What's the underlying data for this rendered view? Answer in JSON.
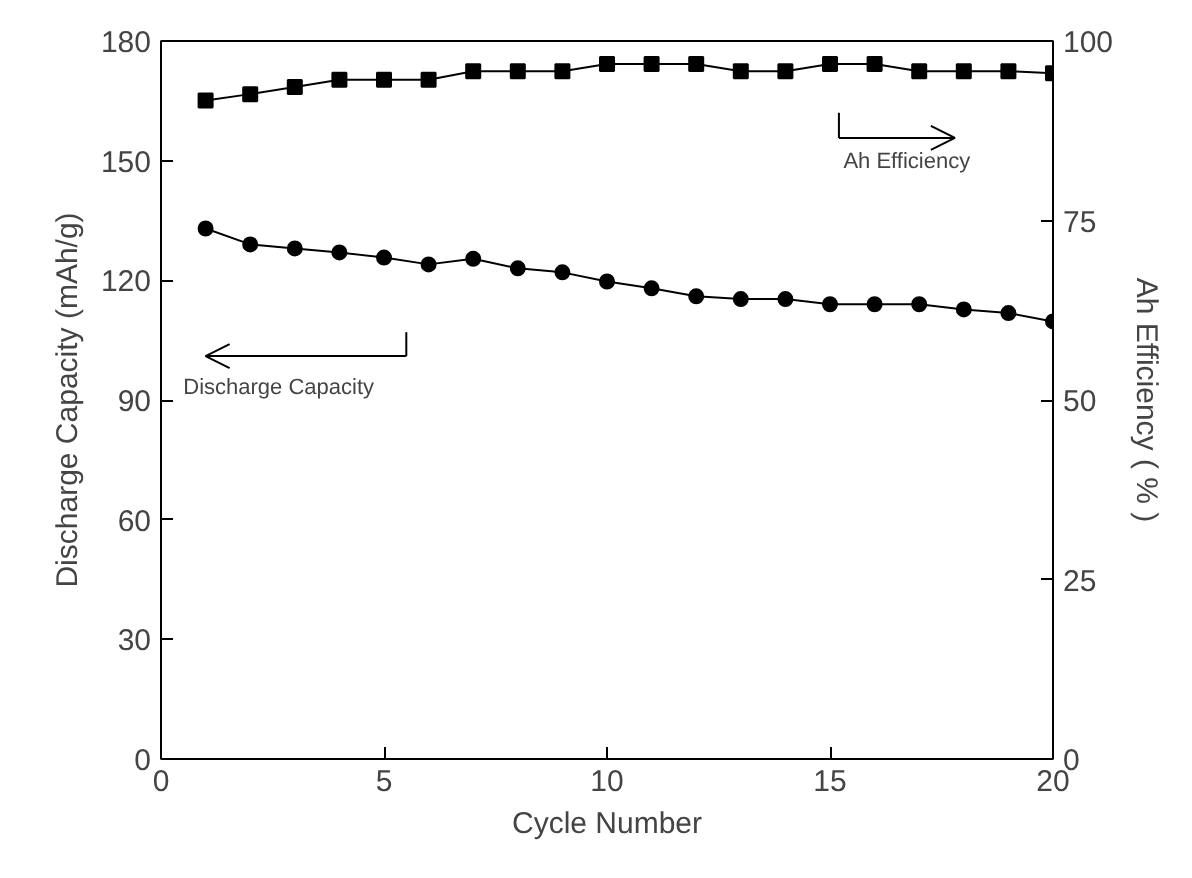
{
  "chart_data": {
    "type": "line",
    "xlabel": "Cycle Number",
    "ylabel": "Discharge Capacity (mAh/g)",
    "y2label": "Ah Efficiency ( % )",
    "x": [
      1,
      2,
      3,
      4,
      5,
      6,
      7,
      8,
      9,
      10,
      11,
      12,
      13,
      14,
      15,
      16,
      17,
      18,
      19,
      20
    ],
    "series": [
      {
        "color": "#000000",
        "marker": "circle",
        "values": [
          133,
          129,
          128,
          127,
          125.7,
          124,
          125.4,
          123,
          122,
          119.7,
          118,
          116,
          115.3,
          115.3,
          114,
          114,
          114,
          112.7,
          111.8,
          109.7
        ]
      },
      {
        "color": "#000000",
        "marker": "square",
        "axis": "y2",
        "values": [
          91.7,
          92.6,
          93.6,
          94.6,
          94.6,
          94.6,
          95.8,
          95.8,
          95.8,
          96.8,
          96.8,
          96.8,
          95.8,
          95.8,
          96.8,
          96.8,
          95.8,
          95.8,
          95.8,
          95.5
        ]
      }
    ],
    "xlim": [
      0,
      20
    ],
    "xticks": [
      0,
      5,
      10,
      15,
      20
    ],
    "ylim": [
      0,
      180
    ],
    "yticks": [
      0,
      30,
      60,
      90,
      120,
      150,
      180
    ],
    "y2lim": [
      0,
      100
    ],
    "y2ticks": [
      0,
      25,
      50,
      75,
      100
    ],
    "grid": false,
    "line_style": "solid",
    "annotations": [
      "Ah Efficiency",
      "Discharge Capacity"
    ]
  }
}
